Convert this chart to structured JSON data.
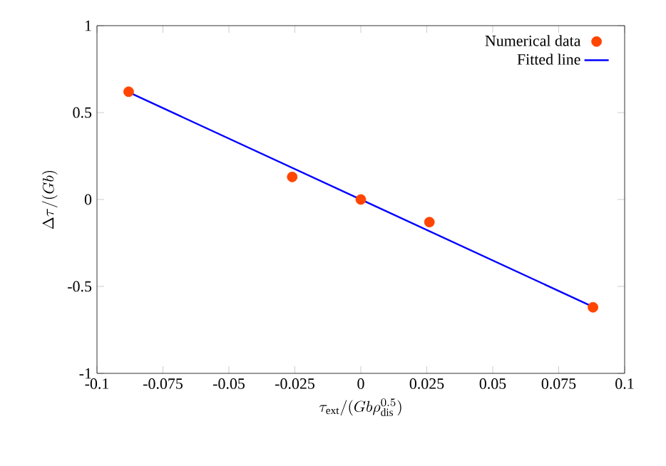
{
  "chart_data": {
    "type": "scatter",
    "xlabel": "\\tau_{\\mathrm{ext}}/(Gb\\rho_{\\mathrm{dis}}^{0.5})",
    "ylabel": "\\Delta\\tau/(Gb)",
    "series": [
      {
        "name": "Numerical data",
        "marker": "circle",
        "color": "#ff4500",
        "x": [
          -0.088,
          -0.026,
          0,
          0.026,
          0.088
        ],
        "values": [
          0.62,
          0.13,
          0,
          -0.13,
          -0.62
        ]
      },
      {
        "name": "Fitted line",
        "type": "line",
        "line_style": "solid",
        "marker": "none",
        "color": "#0000ff",
        "x": [
          -0.087,
          0.087
        ],
        "values": [
          0.61,
          -0.61
        ]
      }
    ],
    "xlim": [
      -0.1,
      0.1
    ],
    "xticks": [
      -0.1,
      -0.075,
      -0.05,
      -0.025,
      0,
      0.025,
      0.05,
      0.075,
      0.1
    ],
    "ylim": [
      -1,
      1
    ],
    "yticks": [
      -1,
      -0.5,
      0,
      0.5,
      1
    ],
    "grid": false,
    "legend": "top right"
  }
}
